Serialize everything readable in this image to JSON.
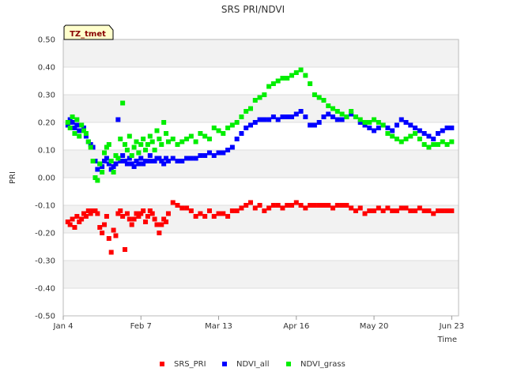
{
  "chart_data": {
    "type": "scatter",
    "title": "SRS PRI/NDVI",
    "xlabel": "Time",
    "ylabel": "PRI",
    "tag": "TZ_tmet",
    "x_unit": "days since Jan 4",
    "xlim": [
      0,
      173
    ],
    "ylim": [
      -0.5,
      0.5
    ],
    "x_ticks": [
      {
        "value": 0,
        "label": "Jan 4"
      },
      {
        "value": 34,
        "label": "Feb 7"
      },
      {
        "value": 68,
        "label": "Mar 13"
      },
      {
        "value": 102,
        "label": "Apr 16"
      },
      {
        "value": 136,
        "label": "May 20"
      },
      {
        "value": 170,
        "label": "Jun 23"
      }
    ],
    "y_ticks": [
      {
        "value": -0.5,
        "label": "-0.50"
      },
      {
        "value": -0.4,
        "label": "-0.40"
      },
      {
        "value": -0.3,
        "label": "-0.30"
      },
      {
        "value": -0.2,
        "label": "-0.20"
      },
      {
        "value": -0.1,
        "label": "-0.10"
      },
      {
        "value": 0.0,
        "label": "0.00"
      },
      {
        "value": 0.1,
        "label": "0.10"
      },
      {
        "value": 0.2,
        "label": "0.20"
      },
      {
        "value": 0.3,
        "label": "0.30"
      },
      {
        "value": 0.4,
        "label": "0.40"
      },
      {
        "value": 0.5,
        "label": "0.50"
      }
    ],
    "legend": "bottom",
    "series": [
      {
        "name": "SRS_PRI",
        "color": "#ff0000",
        "x": [
          2,
          3,
          4,
          5,
          6,
          7,
          8,
          9,
          10,
          11,
          12,
          13,
          14,
          15,
          16,
          17,
          18,
          19,
          20,
          21,
          22,
          23,
          24,
          25,
          26,
          27,
          28,
          29,
          30,
          31,
          32,
          33,
          34,
          35,
          36,
          37,
          38,
          39,
          40,
          41,
          42,
          43,
          44,
          45,
          46,
          48,
          50,
          52,
          54,
          56,
          58,
          60,
          62,
          64,
          66,
          68,
          70,
          72,
          74,
          76,
          78,
          80,
          82,
          84,
          86,
          88,
          90,
          92,
          94,
          96,
          98,
          100,
          102,
          104,
          106,
          108,
          110,
          112,
          114,
          116,
          118,
          120,
          122,
          124,
          126,
          128,
          130,
          132,
          134,
          136,
          138,
          140,
          142,
          144,
          146,
          148,
          150,
          152,
          154,
          156,
          158,
          160,
          162,
          164,
          166,
          168,
          170
        ],
        "y": [
          -0.16,
          -0.17,
          -0.15,
          -0.18,
          -0.14,
          -0.16,
          -0.15,
          -0.13,
          -0.14,
          -0.12,
          -0.13,
          -0.12,
          -0.12,
          -0.13,
          -0.18,
          -0.2,
          -0.17,
          -0.14,
          -0.22,
          -0.27,
          -0.19,
          -0.21,
          -0.13,
          -0.12,
          -0.14,
          -0.26,
          -0.13,
          -0.15,
          -0.17,
          -0.15,
          -0.13,
          -0.14,
          -0.13,
          -0.12,
          -0.16,
          -0.14,
          -0.12,
          -0.13,
          -0.15,
          -0.17,
          -0.2,
          -0.17,
          -0.15,
          -0.16,
          -0.13,
          -0.09,
          -0.1,
          -0.11,
          -0.11,
          -0.12,
          -0.14,
          -0.13,
          -0.14,
          -0.12,
          -0.14,
          -0.13,
          -0.13,
          -0.14,
          -0.12,
          -0.12,
          -0.11,
          -0.1,
          -0.09,
          -0.11,
          -0.1,
          -0.12,
          -0.11,
          -0.1,
          -0.1,
          -0.11,
          -0.1,
          -0.1,
          -0.09,
          -0.1,
          -0.11,
          -0.1,
          -0.1,
          -0.1,
          -0.1,
          -0.1,
          -0.11,
          -0.1,
          -0.1,
          -0.1,
          -0.11,
          -0.12,
          -0.11,
          -0.13,
          -0.12,
          -0.12,
          -0.11,
          -0.12,
          -0.11,
          -0.12,
          -0.12,
          -0.11,
          -0.11,
          -0.12,
          -0.12,
          -0.11,
          -0.12,
          -0.12,
          -0.13,
          -0.12,
          -0.12,
          -0.12,
          -0.12
        ]
      },
      {
        "name": "NDVI_all",
        "color": "#0000ff",
        "x": [
          2,
          3,
          4,
          5,
          6,
          7,
          8,
          9,
          10,
          11,
          12,
          13,
          14,
          15,
          16,
          17,
          18,
          19,
          20,
          21,
          22,
          23,
          24,
          25,
          26,
          27,
          28,
          29,
          30,
          31,
          32,
          33,
          34,
          35,
          36,
          37,
          38,
          39,
          40,
          41,
          42,
          43,
          44,
          45,
          46,
          48,
          50,
          52,
          54,
          56,
          58,
          60,
          62,
          64,
          66,
          68,
          70,
          72,
          74,
          76,
          78,
          80,
          82,
          84,
          86,
          88,
          90,
          92,
          94,
          96,
          98,
          100,
          102,
          104,
          106,
          108,
          110,
          112,
          114,
          116,
          118,
          120,
          122,
          124,
          126,
          128,
          130,
          132,
          134,
          136,
          138,
          140,
          142,
          144,
          146,
          148,
          150,
          152,
          154,
          156,
          158,
          160,
          162,
          164,
          166,
          168,
          170
        ],
        "y": [
          0.19,
          0.21,
          0.2,
          0.18,
          0.19,
          0.17,
          0.19,
          0.18,
          0.15,
          0.13,
          0.12,
          0.11,
          0.06,
          0.03,
          0.05,
          0.04,
          0.06,
          0.07,
          0.05,
          0.03,
          0.04,
          0.05,
          0.21,
          0.06,
          0.08,
          0.06,
          0.05,
          0.07,
          0.05,
          0.04,
          0.06,
          0.05,
          0.07,
          0.05,
          0.06,
          0.06,
          0.08,
          0.06,
          0.06,
          0.07,
          0.07,
          0.06,
          0.05,
          0.07,
          0.06,
          0.07,
          0.06,
          0.06,
          0.07,
          0.07,
          0.07,
          0.08,
          0.08,
          0.09,
          0.08,
          0.09,
          0.09,
          0.1,
          0.11,
          0.14,
          0.16,
          0.18,
          0.19,
          0.2,
          0.21,
          0.21,
          0.21,
          0.22,
          0.21,
          0.22,
          0.22,
          0.22,
          0.23,
          0.24,
          0.22,
          0.19,
          0.19,
          0.2,
          0.22,
          0.23,
          0.22,
          0.21,
          0.21,
          0.22,
          0.23,
          0.22,
          0.2,
          0.19,
          0.18,
          0.17,
          0.18,
          0.19,
          0.18,
          0.17,
          0.19,
          0.21,
          0.2,
          0.19,
          0.18,
          0.17,
          0.16,
          0.15,
          0.14,
          0.16,
          0.17,
          0.18,
          0.18
        ]
      },
      {
        "name": "NDVI_grass",
        "color": "#00ee00",
        "x": [
          2,
          3,
          4,
          5,
          6,
          7,
          8,
          9,
          10,
          11,
          12,
          13,
          14,
          15,
          16,
          17,
          18,
          19,
          20,
          21,
          22,
          23,
          24,
          25,
          26,
          27,
          28,
          29,
          30,
          31,
          32,
          33,
          34,
          35,
          36,
          37,
          38,
          39,
          40,
          41,
          42,
          43,
          44,
          45,
          46,
          48,
          50,
          52,
          54,
          56,
          58,
          60,
          62,
          64,
          66,
          68,
          70,
          72,
          74,
          76,
          78,
          80,
          82,
          84,
          86,
          88,
          90,
          92,
          94,
          96,
          98,
          100,
          102,
          104,
          106,
          108,
          110,
          112,
          114,
          116,
          118,
          120,
          122,
          124,
          126,
          128,
          130,
          132,
          134,
          136,
          138,
          140,
          142,
          144,
          146,
          148,
          150,
          152,
          154,
          156,
          158,
          160,
          162,
          164,
          166,
          168,
          170
        ],
        "y": [
          0.2,
          0.18,
          0.22,
          0.16,
          0.21,
          0.15,
          0.19,
          0.17,
          0.16,
          0.13,
          0.11,
          0.06,
          0.0,
          -0.01,
          0.05,
          0.02,
          0.09,
          0.11,
          0.12,
          0.06,
          0.02,
          0.08,
          0.07,
          0.14,
          0.27,
          0.12,
          0.1,
          0.15,
          0.08,
          0.11,
          0.13,
          0.09,
          0.12,
          0.14,
          0.1,
          0.12,
          0.15,
          0.13,
          0.1,
          0.17,
          0.14,
          0.12,
          0.2,
          0.16,
          0.13,
          0.14,
          0.12,
          0.13,
          0.14,
          0.15,
          0.13,
          0.16,
          0.15,
          0.14,
          0.18,
          0.17,
          0.16,
          0.18,
          0.19,
          0.2,
          0.22,
          0.24,
          0.25,
          0.28,
          0.29,
          0.3,
          0.33,
          0.34,
          0.35,
          0.36,
          0.36,
          0.37,
          0.38,
          0.39,
          0.37,
          0.34,
          0.3,
          0.29,
          0.28,
          0.26,
          0.25,
          0.24,
          0.23,
          0.22,
          0.24,
          0.22,
          0.21,
          0.2,
          0.2,
          0.21,
          0.2,
          0.19,
          0.16,
          0.15,
          0.14,
          0.13,
          0.14,
          0.15,
          0.16,
          0.14,
          0.12,
          0.11,
          0.12,
          0.12,
          0.13,
          0.12,
          0.13
        ]
      }
    ]
  }
}
